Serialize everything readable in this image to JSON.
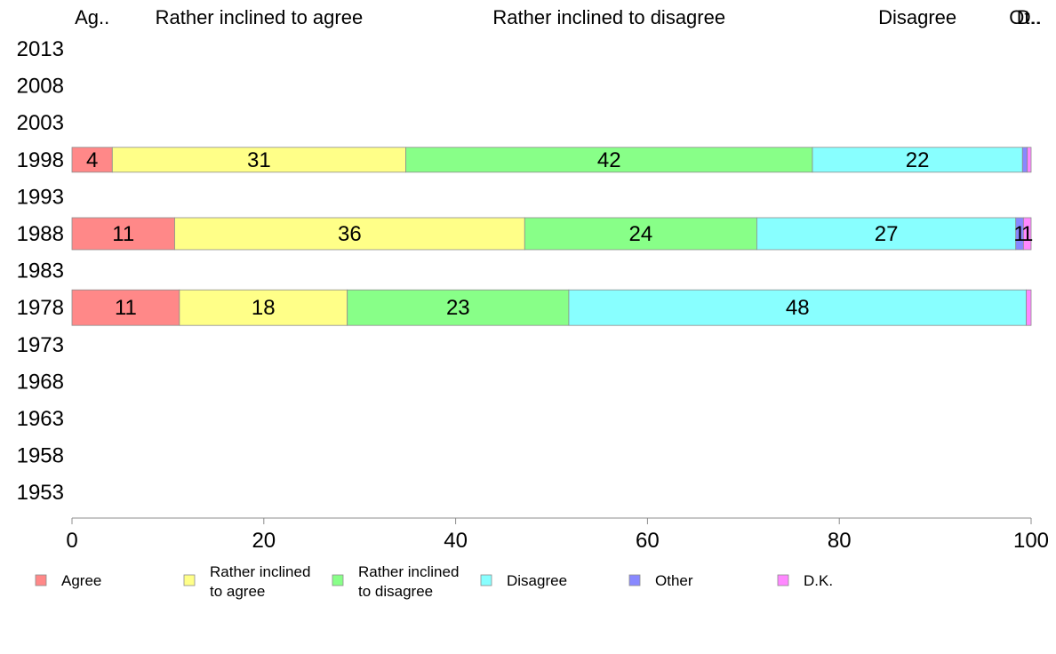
{
  "chart_data": {
    "type": "bar",
    "orientation": "horizontal",
    "stacked": true,
    "categories": [
      "2013",
      "2008",
      "2003",
      "1998",
      "1993",
      "1988",
      "1983",
      "1978",
      "1973",
      "1968",
      "1963",
      "1958",
      "1953"
    ],
    "series": [
      {
        "name": "Agree",
        "legend_lines": [
          "Agree"
        ],
        "top_label": "Ag..",
        "color": "#ff8888",
        "values": [
          null,
          null,
          null,
          4.2,
          null,
          10.7,
          null,
          11.2,
          null,
          null,
          null,
          null,
          null
        ],
        "labels": [
          "",
          "",
          "",
          "4",
          "",
          "11",
          "",
          "11",
          "",
          "",
          "",
          "",
          ""
        ]
      },
      {
        "name": "Rather inclined to agree",
        "legend_lines": [
          "Rather inclined",
          "to agree"
        ],
        "top_label": "Rather inclined to agree",
        "color": "#ffff88",
        "values": [
          null,
          null,
          null,
          30.6,
          null,
          36.5,
          null,
          17.5,
          null,
          null,
          null,
          null,
          null
        ],
        "labels": [
          "",
          "",
          "",
          "31",
          "",
          "36",
          "",
          "18",
          "",
          "",
          "",
          "",
          ""
        ]
      },
      {
        "name": "Rather inclined to disagree",
        "legend_lines": [
          "Rather inclined",
          "to disagree"
        ],
        "top_label": "Rather inclined to disagree",
        "color": "#88ff88",
        "values": [
          null,
          null,
          null,
          42.4,
          null,
          24.2,
          null,
          23.1,
          null,
          null,
          null,
          null,
          null
        ],
        "labels": [
          "",
          "",
          "",
          "42",
          "",
          "24",
          "",
          "23",
          "",
          "",
          "",
          "",
          ""
        ]
      },
      {
        "name": "Disagree",
        "legend_lines": [
          "Disagree"
        ],
        "top_label": "Disagree",
        "color": "#88ffff",
        "values": [
          null,
          null,
          null,
          21.9,
          null,
          27.0,
          null,
          47.7,
          null,
          null,
          null,
          null,
          null
        ],
        "labels": [
          "",
          "",
          "",
          "22",
          "",
          "27",
          "",
          "48",
          "",
          "",
          "",
          "",
          ""
        ]
      },
      {
        "name": "Other",
        "legend_lines": [
          "Other"
        ],
        "top_label": "Ot..",
        "color": "#8888ff",
        "values": [
          null,
          null,
          null,
          0.5,
          null,
          0.8,
          null,
          0.0,
          null,
          null,
          null,
          null,
          null
        ],
        "labels": [
          "",
          "",
          "",
          "",
          "",
          "1",
          "",
          "",
          "",
          "",
          "",
          "",
          ""
        ]
      },
      {
        "name": "D.K.",
        "legend_lines": [
          "D.K."
        ],
        "top_label": "D..",
        "color": "#ff88ff",
        "values": [
          null,
          null,
          null,
          0.4,
          null,
          0.8,
          null,
          0.5,
          null,
          null,
          null,
          null,
          null
        ],
        "labels": [
          "",
          "",
          "",
          "",
          "",
          "1",
          "",
          "",
          "",
          "",
          "",
          "",
          ""
        ]
      }
    ],
    "bar_categories": [
      "1998",
      "1988",
      "1978"
    ],
    "xlim": [
      0,
      100
    ],
    "xticks": [
      0,
      20,
      40,
      60,
      80,
      100
    ],
    "legend_position": "bottom",
    "grid": false
  }
}
